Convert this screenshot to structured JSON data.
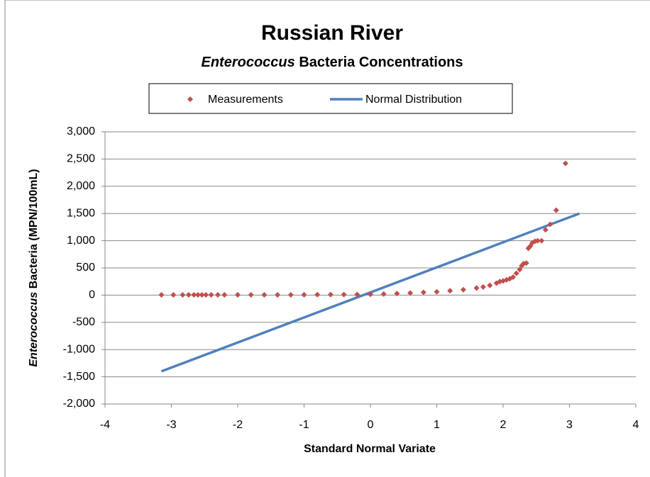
{
  "chart_data": {
    "type": "scatter",
    "title": "Russian River",
    "subtitle": [
      "Enterococcus",
      "Bacteria Concentrations"
    ],
    "xlabel": "Standard Normal Variate",
    "ylabel": [
      "Enterococcus",
      "Bacteria   (MPN/100mL)"
    ],
    "xlim": [
      -4,
      4
    ],
    "xticks": [
      -4,
      -3,
      -2,
      -1,
      0,
      1,
      2,
      3,
      4
    ],
    "ylim": [
      -2000,
      3000
    ],
    "yticks": [
      {
        "value": -2000,
        "label": "-2,000"
      },
      {
        "value": -1500,
        "label": "-1,500"
      },
      {
        "value": -1000,
        "label": "-1,000"
      },
      -500,
      0,
      500,
      {
        "value": 1000,
        "label": "1,000"
      },
      {
        "value": 1500,
        "label": "1,500"
      },
      {
        "value": 2000,
        "label": "2,000"
      },
      {
        "value": 2500,
        "label": "2,500"
      },
      {
        "value": 3000,
        "label": "3,000"
      }
    ],
    "grid": true,
    "legend": "top",
    "series": [
      {
        "name": "Measurements",
        "kind": "scatter",
        "color": "#c0504d",
        "x": [
          -3.15,
          -2.97,
          -2.83,
          -2.74,
          -2.66,
          -2.6,
          -2.54,
          -2.48,
          -2.4,
          -2.3,
          -2.2,
          -2.0,
          -1.8,
          -1.6,
          -1.4,
          -1.2,
          -1.0,
          -0.8,
          -0.6,
          -0.4,
          -0.2,
          0,
          0.2,
          0.4,
          0.6,
          0.8,
          1.0,
          1.2,
          1.4,
          1.6,
          1.7,
          1.8,
          1.9,
          1.95,
          2.0,
          2.05,
          2.1,
          2.15,
          2.2,
          2.25,
          2.28,
          2.31,
          2.35,
          2.38,
          2.41,
          2.44,
          2.48,
          2.52,
          2.58,
          2.64,
          2.71,
          2.8,
          2.94
        ],
        "values": [
          5,
          5,
          5,
          5,
          5,
          5,
          5,
          5,
          5,
          5,
          5,
          5,
          5,
          5,
          5,
          5,
          7,
          8,
          10,
          10,
          12,
          15,
          20,
          30,
          40,
          50,
          60,
          80,
          100,
          130,
          150,
          180,
          220,
          250,
          260,
          280,
          300,
          330,
          400,
          470,
          540,
          580,
          590,
          860,
          900,
          960,
          990,
          1000,
          1000,
          1200,
          1300,
          1560,
          2420
        ]
      },
      {
        "name": "Normal Distribution",
        "kind": "line",
        "color": "#4f81bd",
        "x": [
          -3.15,
          3.15
        ],
        "values": [
          -1400,
          1500
        ]
      }
    ]
  }
}
